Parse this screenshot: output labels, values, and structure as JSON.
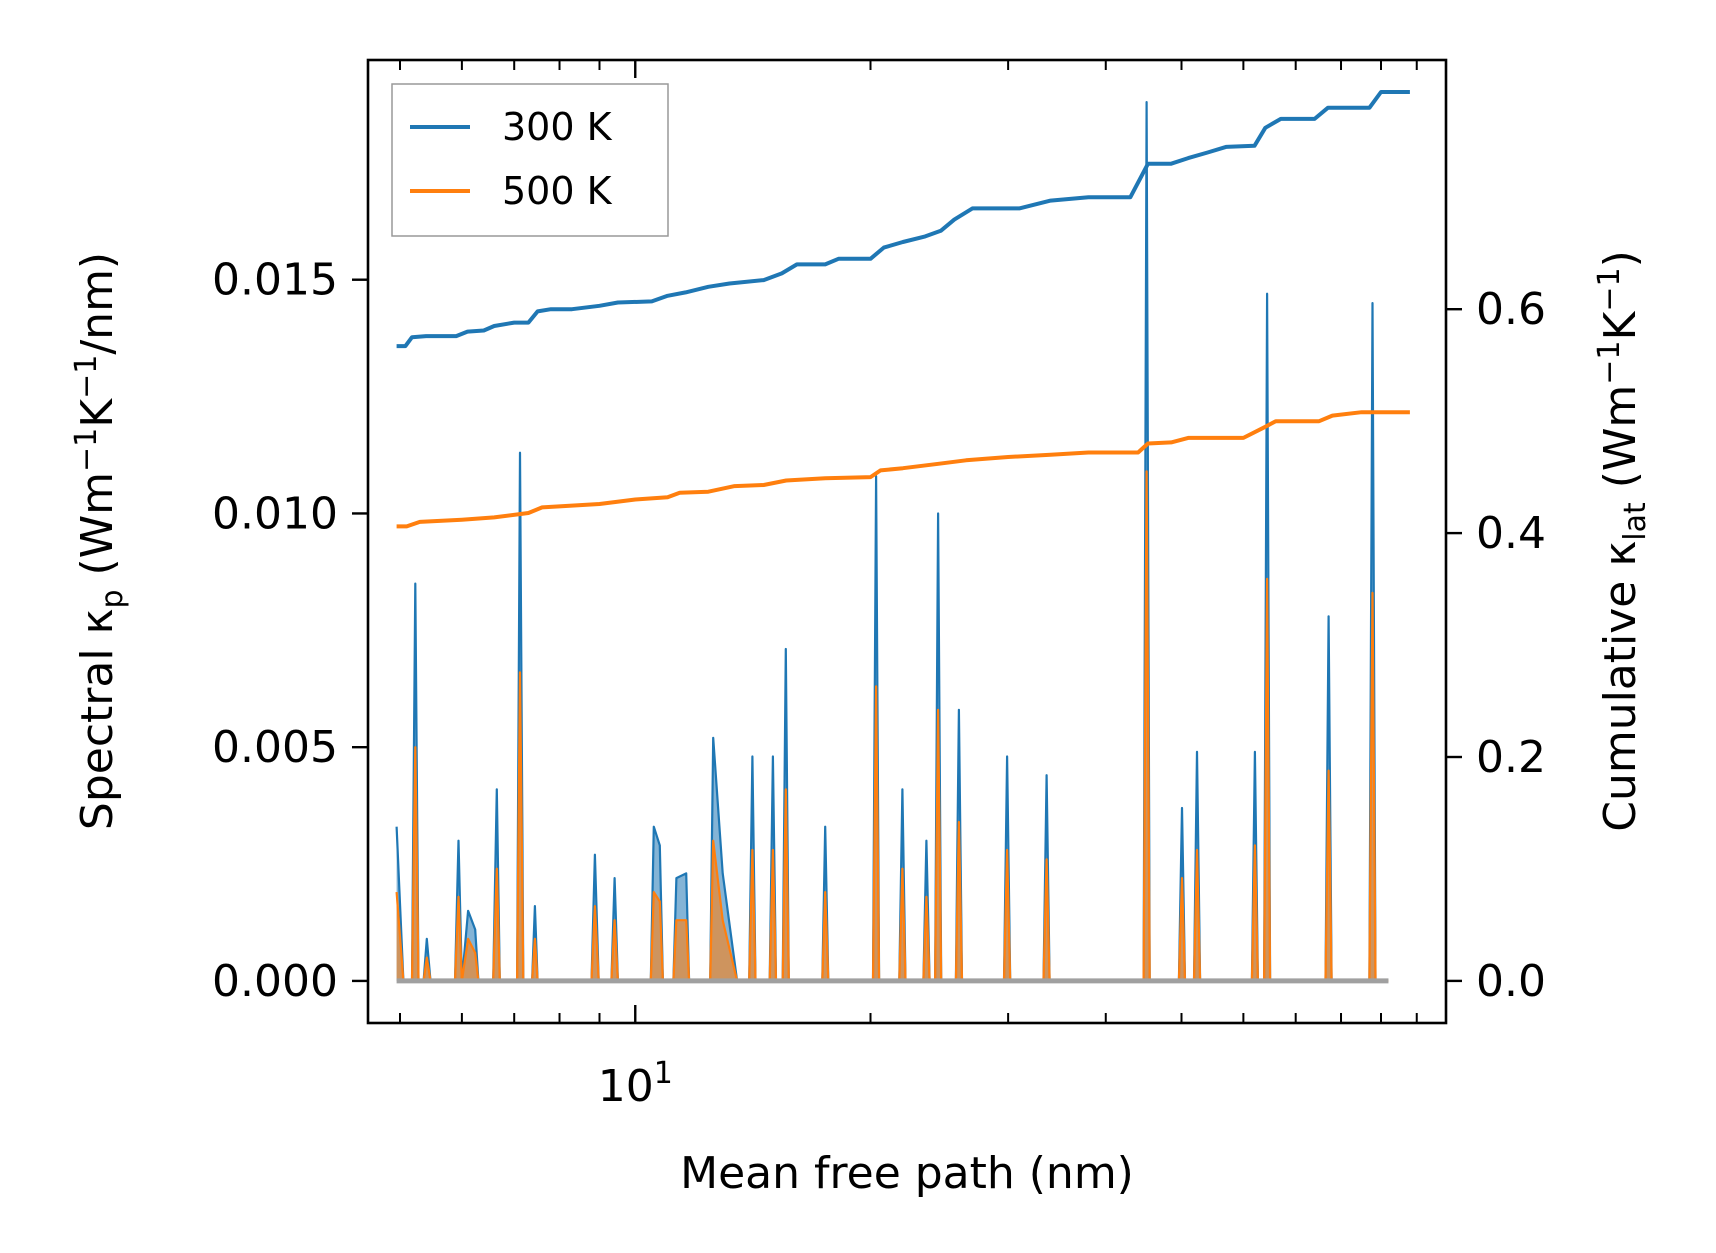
{
  "chart_data": {
    "type": "line",
    "xscale": "log",
    "xlim": [
      4.55,
      109
    ],
    "xlabel": "Mean free path (nm)",
    "x_tick_major": [
      10
    ],
    "x_tick_label_base": "10",
    "x_tick_label_exp": "1",
    "x_tick_minor": [
      5,
      6,
      7,
      8,
      9,
      20,
      30,
      40,
      50,
      60,
      70,
      80,
      90,
      100
    ],
    "left_axis": {
      "label_main": "Spectral κ",
      "label_sub": "p",
      "label_units": " (Wm",
      "label_exp1": "−1",
      "label_mid": "K",
      "label_exp2": "−1",
      "label_tail": "/nm)",
      "ylim": [
        -0.0009,
        0.0197
      ],
      "ticks": [
        0.0,
        0.005,
        0.01,
        0.015
      ],
      "tick_labels": [
        "0.000",
        "0.005",
        "0.010",
        "0.015"
      ]
    },
    "right_axis": {
      "label_main": "Cumulative κ",
      "label_sub": "lat",
      "label_units": " (Wm",
      "label_exp1": "−1",
      "label_mid": "K",
      "label_exp2": "−1",
      "label_tail": ")",
      "ylim": [
        -0.0376,
        0.8226
      ],
      "ticks": [
        0.0,
        0.2,
        0.4,
        0.6
      ],
      "tick_labels": [
        "0.0",
        "0.2",
        "0.4",
        "0.6"
      ]
    },
    "legend": {
      "position": "top-left",
      "entries": [
        {
          "label": "300 K",
          "color": "#1f77b4"
        },
        {
          "label": "500 K",
          "color": "#ff7f0e"
        }
      ]
    },
    "cumulative_series": [
      {
        "name": "300 K",
        "color": "#1f77b4",
        "points": [
          [
            4.95,
            0.567
          ],
          [
            5.08,
            0.567
          ],
          [
            5.18,
            0.575
          ],
          [
            5.4,
            0.576
          ],
          [
            5.9,
            0.576
          ],
          [
            6.1,
            0.58
          ],
          [
            6.4,
            0.581
          ],
          [
            6.6,
            0.585
          ],
          [
            7.0,
            0.588
          ],
          [
            7.3,
            0.588
          ],
          [
            7.5,
            0.598
          ],
          [
            7.8,
            0.6
          ],
          [
            8.3,
            0.6
          ],
          [
            9.0,
            0.603
          ],
          [
            9.5,
            0.606
          ],
          [
            10.5,
            0.607
          ],
          [
            11.0,
            0.612
          ],
          [
            11.6,
            0.615
          ],
          [
            12.4,
            0.62
          ],
          [
            13.2,
            0.623
          ],
          [
            14.6,
            0.626
          ],
          [
            15.4,
            0.632
          ],
          [
            16.1,
            0.64
          ],
          [
            17.5,
            0.64
          ],
          [
            18.2,
            0.645
          ],
          [
            20.0,
            0.645
          ],
          [
            20.8,
            0.655
          ],
          [
            22.0,
            0.66
          ],
          [
            23.5,
            0.665
          ],
          [
            24.6,
            0.67
          ],
          [
            25.6,
            0.68
          ],
          [
            27.0,
            0.69
          ],
          [
            30.0,
            0.69
          ],
          [
            31.0,
            0.69
          ],
          [
            34.0,
            0.697
          ],
          [
            38.0,
            0.7
          ],
          [
            43.0,
            0.7
          ],
          [
            45.3,
            0.73
          ],
          [
            48.5,
            0.73
          ],
          [
            51.0,
            0.735
          ],
          [
            54.0,
            0.74
          ],
          [
            57.0,
            0.745
          ],
          [
            62.0,
            0.746
          ],
          [
            64.0,
            0.762
          ],
          [
            67.0,
            0.77
          ],
          [
            74.0,
            0.77
          ],
          [
            77.0,
            0.78
          ],
          [
            87.0,
            0.78
          ],
          [
            90.0,
            0.794
          ],
          [
            98.0,
            0.794
          ]
        ]
      },
      {
        "name": "500 K",
        "color": "#ff7f0e",
        "points": [
          [
            4.95,
            0.406
          ],
          [
            5.1,
            0.406
          ],
          [
            5.3,
            0.41
          ],
          [
            6.0,
            0.412
          ],
          [
            6.6,
            0.414
          ],
          [
            7.3,
            0.418
          ],
          [
            7.6,
            0.423
          ],
          [
            9.0,
            0.426
          ],
          [
            10.0,
            0.43
          ],
          [
            11.0,
            0.432
          ],
          [
            11.4,
            0.436
          ],
          [
            12.4,
            0.437
          ],
          [
            13.4,
            0.442
          ],
          [
            14.6,
            0.443
          ],
          [
            15.6,
            0.447
          ],
          [
            17.5,
            0.449
          ],
          [
            20.0,
            0.45
          ],
          [
            20.6,
            0.456
          ],
          [
            22.0,
            0.458
          ],
          [
            24.5,
            0.462
          ],
          [
            26.5,
            0.465
          ],
          [
            30.0,
            0.468
          ],
          [
            34.0,
            0.47
          ],
          [
            38.0,
            0.472
          ],
          [
            44.0,
            0.472
          ],
          [
            45.3,
            0.48
          ],
          [
            48.5,
            0.481
          ],
          [
            51.0,
            0.485
          ],
          [
            60.0,
            0.485
          ],
          [
            64.0,
            0.495
          ],
          [
            66.0,
            0.5
          ],
          [
            75.0,
            0.5
          ],
          [
            78.0,
            0.505
          ],
          [
            85.0,
            0.508
          ],
          [
            92.0,
            0.508
          ],
          [
            98.0,
            0.508
          ]
        ]
      }
    ],
    "spectral_series": [
      {
        "name": "300 K",
        "color": "#1f77b4",
        "points": [
          [
            4.95,
            0.0033
          ],
          [
            5.05,
            0.0
          ],
          [
            5.18,
            0.0
          ],
          [
            5.23,
            0.0085
          ],
          [
            5.28,
            0.0
          ],
          [
            5.36,
            0.0
          ],
          [
            5.41,
            0.0009
          ],
          [
            5.47,
            0.0
          ],
          [
            5.88,
            0.0
          ],
          [
            5.94,
            0.003
          ],
          [
            6.0,
            0.0
          ],
          [
            6.11,
            0.0015
          ],
          [
            6.24,
            0.0011
          ],
          [
            6.3,
            0.0
          ],
          [
            6.58,
            0.0
          ],
          [
            6.65,
            0.0041
          ],
          [
            6.71,
            0.0
          ],
          [
            7.06,
            0.0
          ],
          [
            7.12,
            0.0113
          ],
          [
            7.19,
            0.0
          ],
          [
            7.38,
            0.0
          ],
          [
            7.44,
            0.0016
          ],
          [
            7.5,
            0.0
          ],
          [
            8.79,
            0.0
          ],
          [
            8.88,
            0.0027
          ],
          [
            8.98,
            0.0
          ],
          [
            9.32,
            0.0
          ],
          [
            9.41,
            0.0022
          ],
          [
            9.5,
            0.0
          ],
          [
            10.47,
            0.0
          ],
          [
            10.56,
            0.0033
          ],
          [
            10.75,
            0.0029
          ],
          [
            10.85,
            0.0
          ],
          [
            11.19,
            0.0
          ],
          [
            11.29,
            0.0022
          ],
          [
            11.62,
            0.0023
          ],
          [
            11.72,
            0.0
          ],
          [
            12.47,
            0.0
          ],
          [
            12.58,
            0.0052
          ],
          [
            12.94,
            0.0023
          ],
          [
            13.5,
            0.0
          ],
          [
            13.99,
            0.0
          ],
          [
            14.12,
            0.0048
          ],
          [
            14.25,
            0.0
          ],
          [
            14.86,
            0.0
          ],
          [
            15.0,
            0.0048
          ],
          [
            15.14,
            0.0
          ],
          [
            15.44,
            0.0
          ],
          [
            15.58,
            0.0071
          ],
          [
            15.72,
            0.0
          ],
          [
            17.35,
            0.0
          ],
          [
            17.5,
            0.0033
          ],
          [
            17.66,
            0.0
          ],
          [
            20.15,
            0.0
          ],
          [
            20.33,
            0.0108
          ],
          [
            20.51,
            0.0
          ],
          [
            21.77,
            0.0
          ],
          [
            21.97,
            0.0041
          ],
          [
            22.17,
            0.0
          ],
          [
            23.37,
            0.0
          ],
          [
            23.58,
            0.003
          ],
          [
            23.8,
            0.0
          ],
          [
            24.19,
            0.0
          ],
          [
            24.41,
            0.01
          ],
          [
            24.63,
            0.0
          ],
          [
            25.72,
            0.0
          ],
          [
            25.95,
            0.0058
          ],
          [
            26.19,
            0.0
          ],
          [
            29.64,
            0.0
          ],
          [
            29.91,
            0.0048
          ],
          [
            30.18,
            0.0
          ],
          [
            33.3,
            0.0
          ],
          [
            33.6,
            0.0044
          ],
          [
            33.9,
            0.0
          ],
          [
            44.72,
            0.0
          ],
          [
            45.12,
            0.0188
          ],
          [
            45.53,
            0.0
          ],
          [
            49.62,
            0.0
          ],
          [
            50.07,
            0.0037
          ],
          [
            50.52,
            0.0
          ],
          [
            51.87,
            0.0
          ],
          [
            52.34,
            0.0049
          ],
          [
            52.81,
            0.0
          ],
          [
            61.52,
            0.0
          ],
          [
            62.07,
            0.0049
          ],
          [
            62.63,
            0.0
          ],
          [
            63.77,
            0.0
          ],
          [
            64.34,
            0.0147
          ],
          [
            64.92,
            0.0
          ],
          [
            76.43,
            0.0
          ],
          [
            77.12,
            0.0078
          ],
          [
            77.82,
            0.0
          ],
          [
            86.98,
            0.0
          ],
          [
            87.77,
            0.0145
          ],
          [
            88.56,
            0.0
          ],
          [
            92.0,
            0.0
          ]
        ]
      },
      {
        "name": "500 K",
        "color": "#ff7f0e",
        "points": [
          [
            4.95,
            0.0019
          ],
          [
            5.05,
            0.0
          ],
          [
            5.18,
            0.0
          ],
          [
            5.23,
            0.005
          ],
          [
            5.28,
            0.0
          ],
          [
            5.36,
            0.0
          ],
          [
            5.41,
            0.0005
          ],
          [
            5.47,
            0.0
          ],
          [
            5.88,
            0.0
          ],
          [
            5.94,
            0.0018
          ],
          [
            6.0,
            0.0
          ],
          [
            6.11,
            0.0009
          ],
          [
            6.24,
            0.0006
          ],
          [
            6.3,
            0.0
          ],
          [
            6.58,
            0.0
          ],
          [
            6.65,
            0.0024
          ],
          [
            6.71,
            0.0
          ],
          [
            7.06,
            0.0
          ],
          [
            7.12,
            0.0066
          ],
          [
            7.19,
            0.0
          ],
          [
            7.38,
            0.0
          ],
          [
            7.44,
            0.0009
          ],
          [
            7.5,
            0.0
          ],
          [
            8.79,
            0.0
          ],
          [
            8.88,
            0.0016
          ],
          [
            8.98,
            0.0
          ],
          [
            9.32,
            0.0
          ],
          [
            9.41,
            0.0013
          ],
          [
            9.5,
            0.0
          ],
          [
            10.47,
            0.0
          ],
          [
            10.56,
            0.0019
          ],
          [
            10.75,
            0.0017
          ],
          [
            10.85,
            0.0
          ],
          [
            11.19,
            0.0
          ],
          [
            11.29,
            0.0013
          ],
          [
            11.62,
            0.0013
          ],
          [
            11.72,
            0.0
          ],
          [
            12.47,
            0.0
          ],
          [
            12.58,
            0.003
          ],
          [
            12.94,
            0.0013
          ],
          [
            13.5,
            0.0
          ],
          [
            13.99,
            0.0
          ],
          [
            14.12,
            0.0028
          ],
          [
            14.25,
            0.0
          ],
          [
            14.86,
            0.0
          ],
          [
            15.0,
            0.0028
          ],
          [
            15.14,
            0.0
          ],
          [
            15.44,
            0.0
          ],
          [
            15.58,
            0.0041
          ],
          [
            15.72,
            0.0
          ],
          [
            17.35,
            0.0
          ],
          [
            17.5,
            0.0019
          ],
          [
            17.66,
            0.0
          ],
          [
            20.15,
            0.0
          ],
          [
            20.33,
            0.0063
          ],
          [
            20.51,
            0.0
          ],
          [
            21.77,
            0.0
          ],
          [
            21.97,
            0.0024
          ],
          [
            22.17,
            0.0
          ],
          [
            23.37,
            0.0
          ],
          [
            23.58,
            0.0018
          ],
          [
            23.8,
            0.0
          ],
          [
            24.19,
            0.0
          ],
          [
            24.41,
            0.0058
          ],
          [
            24.63,
            0.0
          ],
          [
            25.72,
            0.0
          ],
          [
            25.95,
            0.0034
          ],
          [
            26.19,
            0.0
          ],
          [
            29.64,
            0.0
          ],
          [
            29.91,
            0.0028
          ],
          [
            30.18,
            0.0
          ],
          [
            33.3,
            0.0
          ],
          [
            33.6,
            0.0026
          ],
          [
            33.9,
            0.0
          ],
          [
            44.72,
            0.0
          ],
          [
            45.12,
            0.0109
          ],
          [
            45.53,
            0.0
          ],
          [
            49.62,
            0.0
          ],
          [
            50.07,
            0.0022
          ],
          [
            50.52,
            0.0
          ],
          [
            51.87,
            0.0
          ],
          [
            52.34,
            0.0028
          ],
          [
            52.81,
            0.0
          ],
          [
            61.52,
            0.0
          ],
          [
            62.07,
            0.0029
          ],
          [
            62.63,
            0.0
          ],
          [
            63.77,
            0.0
          ],
          [
            64.34,
            0.0086
          ],
          [
            64.92,
            0.0
          ],
          [
            76.43,
            0.0
          ],
          [
            77.12,
            0.0045
          ],
          [
            77.82,
            0.0
          ],
          [
            86.98,
            0.0
          ],
          [
            87.77,
            0.0083
          ],
          [
            88.56,
            0.0
          ],
          [
            92.0,
            0.0
          ]
        ]
      }
    ]
  }
}
